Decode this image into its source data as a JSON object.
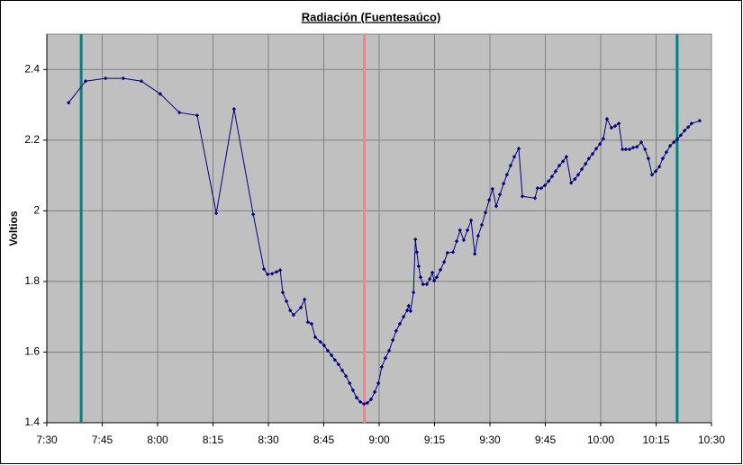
{
  "chart_data": {
    "type": "line",
    "title": "Radiación (Fuentesaúco)",
    "ylabel": "Voltios",
    "xlim": [
      450,
      630
    ],
    "xticks": [
      {
        "value": 450,
        "label": "7:30"
      },
      {
        "value": 465,
        "label": "7:45"
      },
      {
        "value": 480,
        "label": "8:00"
      },
      {
        "value": 495,
        "label": "8:15"
      },
      {
        "value": 510,
        "label": "8:30"
      },
      {
        "value": 525,
        "label": "8:45"
      },
      {
        "value": 540,
        "label": "9:00"
      },
      {
        "value": 555,
        "label": "9:15"
      },
      {
        "value": 570,
        "label": "9:30"
      },
      {
        "value": 585,
        "label": "9:45"
      },
      {
        "value": 600,
        "label": "10:00"
      },
      {
        "value": 615,
        "label": "10:15"
      },
      {
        "value": 630,
        "label": "10:30"
      }
    ],
    "ylim": [
      1.4,
      2.5
    ],
    "yticks": [
      1.4,
      1.6,
      1.8,
      2,
      2.2,
      2.4
    ],
    "grid": true,
    "background": "#c0c0c0",
    "reference_lines": [
      {
        "x": 459.3,
        "color": "#008080"
      },
      {
        "x": 536.0,
        "color": "#ff8080"
      },
      {
        "x": 620.7,
        "color": "#008080"
      }
    ],
    "series": [
      {
        "color": "#000080",
        "x": [
          455.9,
          460.5,
          465.9,
          470.7,
          475.6,
          480.7,
          485.9,
          490.7,
          495.9,
          500.7,
          505.9,
          508.8,
          509.8,
          511.0,
          512.2,
          513.2,
          513.9,
          514.9,
          515.9,
          516.8,
          518.8,
          519.8,
          520.7,
          521.7,
          522.7,
          524.1,
          525.1,
          526.1,
          527.1,
          528.0,
          529.0,
          530.0,
          531.0,
          532.0,
          532.9,
          533.9,
          534.9,
          535.9,
          536.8,
          537.8,
          538.8,
          539.8,
          540.7,
          541.7,
          542.7,
          543.7,
          544.6,
          545.6,
          546.6,
          547.6,
          548.0,
          548.5,
          549.3,
          549.8,
          550.2,
          550.7,
          551.2,
          551.9,
          552.9,
          553.7,
          554.4,
          554.9,
          555.6,
          556.6,
          557.6,
          558.5,
          560.0,
          561.0,
          561.9,
          562.9,
          563.9,
          564.9,
          565.9,
          566.8,
          567.8,
          568.8,
          569.8,
          570.7,
          571.7,
          572.7,
          573.7,
          574.6,
          575.6,
          576.6,
          577.8,
          578.8,
          582.2,
          582.9,
          583.9,
          584.9,
          585.9,
          586.8,
          587.8,
          588.8,
          589.8,
          590.7,
          592.0,
          593.0,
          593.9,
          594.9,
          595.9,
          596.8,
          597.8,
          598.8,
          599.8,
          600.7,
          601.7,
          602.9,
          603.9,
          604.9,
          605.9,
          606.8,
          607.8,
          608.8,
          609.8,
          611.0,
          612.0,
          612.9,
          613.9,
          614.9,
          615.9,
          616.8,
          617.8,
          618.8,
          619.8,
          620.7,
          621.7,
          622.7,
          623.7,
          624.6,
          626.8
        ],
        "values": [
          2.306,
          2.367,
          2.375,
          2.375,
          2.367,
          2.331,
          2.278,
          2.27,
          1.993,
          2.288,
          1.99,
          1.835,
          1.82,
          1.822,
          1.827,
          1.832,
          1.769,
          1.744,
          1.718,
          1.705,
          1.726,
          1.749,
          1.685,
          1.68,
          1.642,
          1.629,
          1.619,
          1.604,
          1.591,
          1.578,
          1.565,
          1.548,
          1.532,
          1.512,
          1.492,
          1.471,
          1.459,
          1.453,
          1.456,
          1.466,
          1.487,
          1.512,
          1.558,
          1.583,
          1.604,
          1.634,
          1.66,
          1.68,
          1.7,
          1.718,
          1.731,
          1.716,
          1.769,
          1.919,
          1.883,
          1.843,
          1.812,
          1.792,
          1.792,
          1.807,
          1.825,
          1.802,
          1.812,
          1.833,
          1.855,
          1.881,
          1.883,
          1.914,
          1.945,
          1.917,
          1.945,
          1.973,
          1.878,
          1.929,
          1.96,
          1.995,
          2.031,
          2.062,
          2.013,
          2.046,
          2.077,
          2.102,
          2.128,
          2.153,
          2.176,
          2.041,
          2.036,
          2.064,
          2.064,
          2.072,
          2.084,
          2.097,
          2.112,
          2.128,
          2.14,
          2.153,
          2.079,
          2.09,
          2.102,
          2.118,
          2.133,
          2.148,
          2.161,
          2.176,
          2.189,
          2.204,
          2.26,
          2.235,
          2.24,
          2.247,
          2.174,
          2.174,
          2.174,
          2.179,
          2.181,
          2.194,
          2.174,
          2.148,
          2.102,
          2.112,
          2.125,
          2.148,
          2.166,
          2.184,
          2.194,
          2.202,
          2.214,
          2.227,
          2.237,
          2.247,
          2.255
        ]
      }
    ]
  }
}
